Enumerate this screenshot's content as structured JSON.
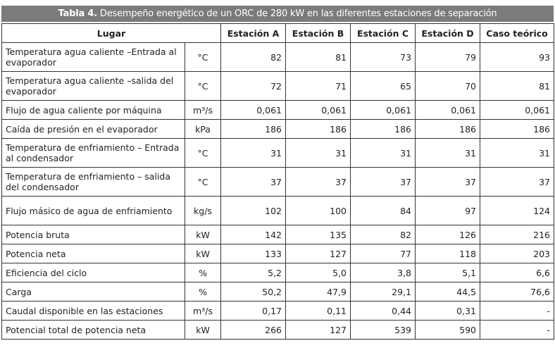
{
  "title": {
    "bold": "Tabla 4.",
    "text": " Desempeño energético  de un ORC de 280 kW en las diferentes estaciones de separación"
  },
  "headers": [
    "Lugar",
    "Estación A",
    "Estación B",
    "Estación C",
    "Estación D",
    "Caso teórico"
  ],
  "rows": [
    {
      "label": "Temperatura agua caliente –Entrada al evaporador",
      "unit": "°C",
      "values": [
        "82",
        "81",
        "73",
        "79",
        "93"
      ],
      "two": true
    },
    {
      "label": "Temperatura agua caliente –salida del evaporador",
      "unit": "°C",
      "values": [
        "72",
        "71",
        "65",
        "70",
        "81"
      ],
      "two": true
    },
    {
      "label": "Flujo de agua caliente por máquina",
      "unit": "m³/s",
      "values": [
        "0,061",
        "0,061",
        "0,061",
        "0,061",
        "0,061"
      ]
    },
    {
      "label": "Caída de presión en el evaporador",
      "unit": "kPa",
      "values": [
        "186",
        "186",
        "186",
        "186",
        "186"
      ]
    },
    {
      "label": "Temperatura de enfriamiento – Entrada al condensador",
      "unit": "°C",
      "values": [
        "31",
        "31",
        "31",
        "31",
        "31"
      ],
      "two": true
    },
    {
      "label": "Temperatura de enfriamiento – salida del condensador",
      "unit": "°C",
      "values": [
        "37",
        "37",
        "37",
        "37",
        "37"
      ],
      "two": true
    },
    {
      "label": "Flujo másico de agua de enfriamiento",
      "unit": "kg/s",
      "values": [
        "102",
        "100",
        "84",
        "97",
        "124"
      ],
      "two": true
    },
    {
      "label": "Potencia bruta",
      "unit": "kW",
      "values": [
        "142",
        "135",
        "82",
        "126",
        "216"
      ]
    },
    {
      "label": "Potencia neta",
      "unit": "kW",
      "values": [
        "133",
        "127",
        "77",
        "118",
        "203"
      ]
    },
    {
      "label": "Eficiencia del ciclo",
      "unit": "%",
      "values": [
        "5,2",
        "5,0",
        "3,8",
        "5,1",
        "6,6"
      ]
    },
    {
      "label": "Carga",
      "unit": "%",
      "values": [
        "50,2",
        "47,9",
        "29,1",
        "44,5",
        "76,6"
      ]
    },
    {
      "label": "Caudal disponible en las estaciones",
      "unit": "m³/s",
      "values": [
        "0,17",
        "0,11",
        "0,44",
        "0,31",
        "-"
      ]
    },
    {
      "label": "Potencial total de potencia neta",
      "unit": "kW",
      "values": [
        "266",
        "127",
        "539",
        "590",
        "-"
      ]
    }
  ]
}
